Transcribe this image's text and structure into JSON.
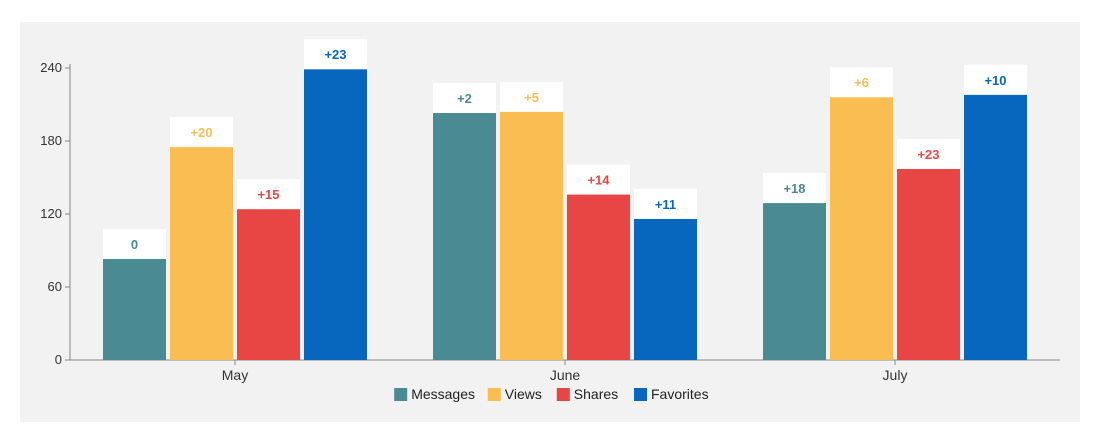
{
  "chart_data": {
    "type": "bar",
    "categories": [
      "May",
      "June",
      "July"
    ],
    "series": [
      {
        "name": "Messages",
        "color": "#4a8a93",
        "values": [
          83,
          203,
          129
        ],
        "labels": [
          "0",
          "+2",
          "+18"
        ]
      },
      {
        "name": "Views",
        "color": "#fabd52",
        "values": [
          175,
          204,
          216
        ],
        "labels": [
          "+20",
          "+5",
          "+6"
        ]
      },
      {
        "name": "Shares",
        "color": "#e84545",
        "values": [
          124,
          136,
          157
        ],
        "labels": [
          "+15",
          "+14",
          "+23"
        ]
      },
      {
        "name": "Favorites",
        "color": "#0766be",
        "values": [
          239,
          116,
          218
        ],
        "labels": [
          "+23",
          "+11",
          "+10"
        ]
      }
    ],
    "yticks": [
      "0",
      "60",
      "120",
      "180",
      "240"
    ],
    "ylim": [
      0,
      240
    ],
    "legend": "bottom",
    "grid": false
  }
}
